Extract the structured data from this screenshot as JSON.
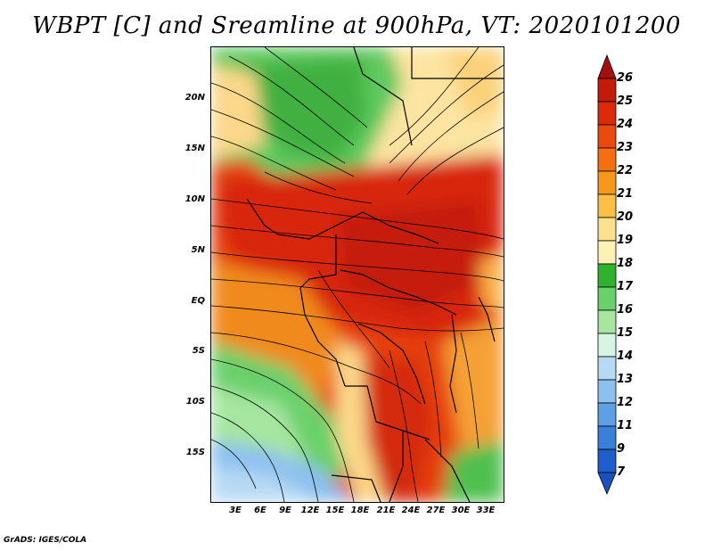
{
  "title": "WBPT [C] and Sreamline at 900hPa, VT: 2020101200",
  "credit": "GrADS: IGES/COLA",
  "map": {
    "lat_labels": [
      "20N",
      "15N",
      "10N",
      "5N",
      "EQ",
      "5S",
      "10S",
      "15S"
    ],
    "lon_labels": [
      "3E",
      "6E",
      "9E",
      "12E",
      "15E",
      "18E",
      "21E",
      "24E",
      "27E",
      "30E",
      "33E"
    ]
  },
  "colorbar": {
    "labels": [
      "26",
      "25",
      "24",
      "23",
      "22",
      "21",
      "20",
      "19",
      "18",
      "17",
      "16",
      "15",
      "14",
      "13",
      "12",
      "11",
      "9",
      "7"
    ],
    "colors": [
      "#a50f0f",
      "#c41a0a",
      "#dc2b0a",
      "#ec4a0c",
      "#f46f10",
      "#f9961c",
      "#fbbf47",
      "#fde08d",
      "#fef1b6",
      "#2fb32f",
      "#6ad06a",
      "#a6e6a0",
      "#d8f5e4",
      "#b6d9f4",
      "#8cc0ee",
      "#5f9fe4",
      "#3a80da",
      "#1f5fcc",
      "#1a4fc0"
    ]
  }
}
